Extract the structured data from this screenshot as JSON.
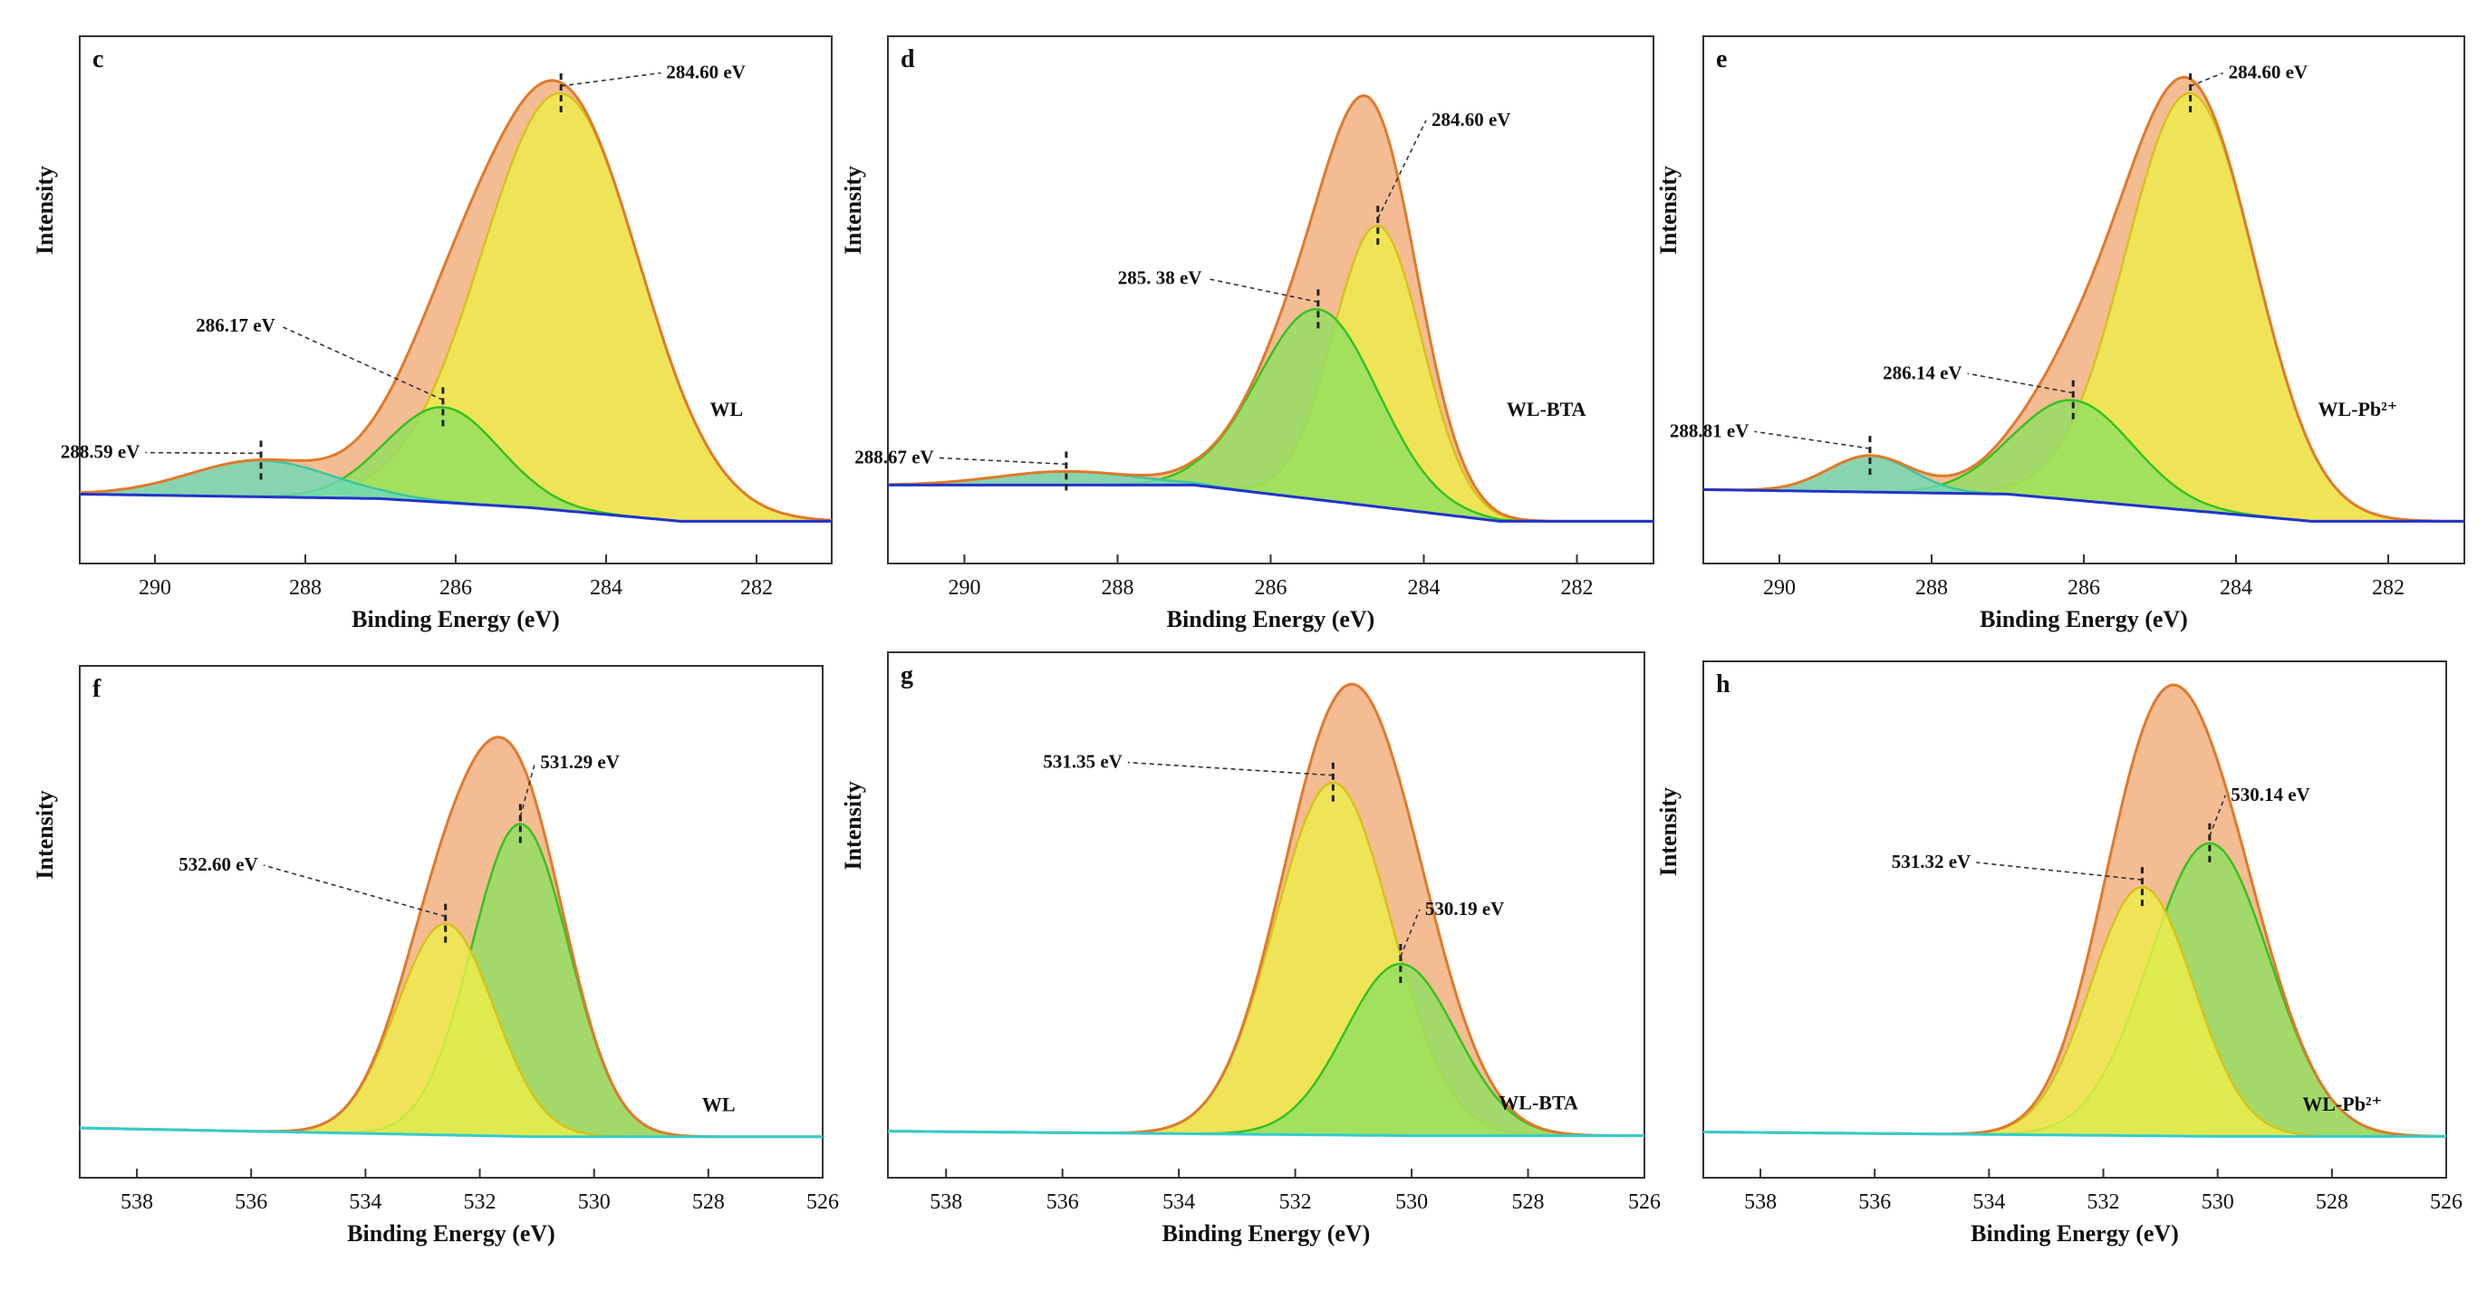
{
  "figure": {
    "colors": {
      "envelope": "#e07a2a",
      "envelope_fill": "#f2b080",
      "yellow": "#eded4a",
      "yellow_stroke": "#d6c21a",
      "green": "#8fe060",
      "green_stroke": "#36c220",
      "teal": "#6ed9b8",
      "teal_stroke": "#3cc6a0",
      "baseline_c": "#2233cc",
      "baseline_o": "#33cccc"
    }
  },
  "chart_data": [
    {
      "type": "area",
      "panel": "c",
      "sample": "WL",
      "xlabel": "Binding Energy (eV)",
      "ylabel": "Intensity",
      "xlim": [
        291,
        281
      ],
      "ylim": [
        0,
        1
      ],
      "x_ticks": [
        "290",
        "288",
        "286",
        "284",
        "282"
      ],
      "baseline": [
        [
          291,
          0.06
        ],
        [
          287,
          0.05
        ],
        [
          285,
          0.03
        ],
        [
          283,
          0.0
        ],
        [
          281,
          0.0
        ]
      ],
      "series": [
        {
          "center": 284.6,
          "height": 0.92,
          "width": 1.05,
          "color": "yellow",
          "label": "284.60 eV"
        },
        {
          "center": 286.17,
          "height": 0.21,
          "width": 0.75,
          "color": "green",
          "label": "286.17 eV"
        },
        {
          "center": 288.59,
          "height": 0.08,
          "width": 0.95,
          "color": "teal",
          "label": "288.59 eV"
        }
      ]
    },
    {
      "type": "area",
      "panel": "d",
      "sample": "WL-BTA",
      "xlabel": "Binding Energy (eV)",
      "ylabel": "Intensity",
      "xlim": [
        291,
        281
      ],
      "ylim": [
        0,
        1
      ],
      "x_ticks": [
        "290",
        "288",
        "286",
        "284",
        "282"
      ],
      "baseline": [
        [
          291,
          0.08
        ],
        [
          287,
          0.08
        ],
        [
          285,
          0.04
        ],
        [
          283,
          0.0
        ],
        [
          281,
          0.0
        ]
      ],
      "series": [
        {
          "center": 284.6,
          "height": 0.62,
          "width": 0.58,
          "color": "yellow",
          "label": "284.60 eV"
        },
        {
          "center": 285.38,
          "height": 0.42,
          "width": 0.78,
          "color": "green",
          "label": "285. 38 eV"
        },
        {
          "center": 288.67,
          "height": 0.03,
          "width": 0.9,
          "color": "teal",
          "label": "288.67 eV"
        }
      ]
    },
    {
      "type": "area",
      "panel": "e",
      "sample": "WL-Pb²⁺",
      "xlabel": "Binding Energy (eV)",
      "ylabel": "Intensity",
      "xlim": [
        291,
        281
      ],
      "ylim": [
        0,
        1
      ],
      "x_ticks": [
        "290",
        "288",
        "286",
        "284",
        "282"
      ],
      "baseline": [
        [
          291,
          0.07
        ],
        [
          287,
          0.06
        ],
        [
          285,
          0.03
        ],
        [
          283,
          0.0
        ],
        [
          281,
          0.0
        ]
      ],
      "series": [
        {
          "center": 284.6,
          "height": 0.92,
          "width": 0.85,
          "color": "yellow",
          "label": "284.60 eV"
        },
        {
          "center": 286.14,
          "height": 0.22,
          "width": 0.78,
          "color": "green",
          "label": "286.14 eV"
        },
        {
          "center": 288.81,
          "height": 0.08,
          "width": 0.55,
          "color": "teal",
          "label": "288.81 eV"
        }
      ]
    },
    {
      "type": "area",
      "panel": "f",
      "sample": "WL",
      "xlabel": "Binding Energy (eV)",
      "ylabel": "Intensity",
      "xlim": [
        539,
        526
      ],
      "ylim": [
        0,
        1
      ],
      "x_ticks": [
        "538",
        "536",
        "534",
        "532",
        "530",
        "528",
        "526"
      ],
      "baseline": [
        [
          539,
          0.02
        ],
        [
          531,
          0.0
        ],
        [
          526,
          0.0
        ]
      ],
      "series": [
        {
          "center": 531.29,
          "height": 0.71,
          "width": 0.85,
          "color": "green",
          "label": "531.29 eV"
        },
        {
          "center": 532.6,
          "height": 0.48,
          "width": 0.85,
          "color": "yellow",
          "label": "532.60 eV"
        }
      ]
    },
    {
      "type": "area",
      "panel": "g",
      "sample": "WL-BTA",
      "xlabel": "Binding Energy (eV)",
      "ylabel": "Intensity",
      "xlim": [
        539,
        526
      ],
      "ylim": [
        0,
        1
      ],
      "x_ticks": [
        "538",
        "536",
        "534",
        "532",
        "530",
        "528",
        "526"
      ],
      "baseline": [
        [
          539,
          0.01
        ],
        [
          530,
          0.0
        ],
        [
          526,
          0.0
        ]
      ],
      "series": [
        {
          "center": 531.35,
          "height": 0.78,
          "width": 1.0,
          "color": "yellow",
          "label": "531.35 eV"
        },
        {
          "center": 530.19,
          "height": 0.38,
          "width": 0.95,
          "color": "green",
          "label": "530.19 eV"
        }
      ]
    },
    {
      "type": "area",
      "panel": "h",
      "sample": "WL-Pb²⁺",
      "xlabel": "Binding Energy (eV)",
      "ylabel": "Intensity",
      "xlim": [
        539,
        526
      ],
      "ylim": [
        0,
        1
      ],
      "x_ticks": [
        "538",
        "536",
        "534",
        "532",
        "530",
        "528",
        "526"
      ],
      "baseline": [
        [
          539,
          0.01
        ],
        [
          530,
          0.0
        ],
        [
          526,
          0.0
        ]
      ],
      "series": [
        {
          "center": 530.14,
          "height": 0.66,
          "width": 1.05,
          "color": "green",
          "label": "530.14 eV"
        },
        {
          "center": 531.32,
          "height": 0.56,
          "width": 0.9,
          "color": "yellow",
          "label": "531.32 eV"
        }
      ]
    }
  ]
}
